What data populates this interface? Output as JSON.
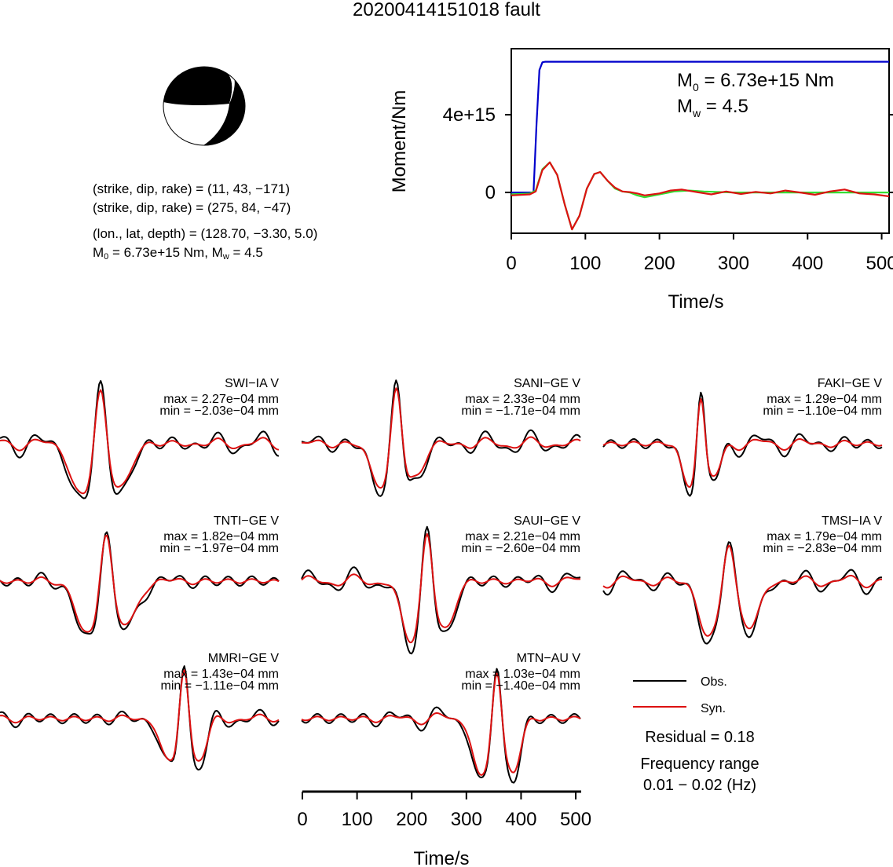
{
  "title": "20200414151018 fault",
  "mechanism": {
    "line1": "(strike, dip, rake) = (11, 43, −171)",
    "line2": "(strike, dip, rake) = (275, 84, −47)",
    "line3": "(lon., lat, depth) = (128.70, −3.30, 5.0)",
    "m0_label": "M",
    "m0_sub": "0",
    "m0_value": " = 6.73e+15 Nm, M",
    "mw_sub": "w",
    "mw_value": " = 4.5"
  },
  "moment_plot": {
    "ylabel": "Moment/Nm",
    "xlabel": "Time/s",
    "m0_text": "M",
    "m0_sub": "0",
    "m0_value": " = 6.73e+15 Nm",
    "mw_text": "M",
    "mw_sub": "w",
    "mw_value": " = 4.5",
    "yticks": [
      "0",
      "4e+15"
    ],
    "xticks": [
      "0",
      "100",
      "200",
      "300",
      "400",
      "500"
    ]
  },
  "chart_data": [
    {
      "type": "line",
      "xlabel": "Time/s",
      "ylabel": "Moment/Nm",
      "xlim": [
        0,
        510
      ],
      "ylim": [
        -2100000000000000.0,
        7400000000000000.0
      ],
      "series": [
        {
          "color": "#0000cc",
          "x": [
            0,
            30,
            34,
            38,
            42,
            46,
            510
          ],
          "y": [
            0,
            0,
            3500000000000000.0,
            6300000000000000.0,
            6700000000000000.0,
            6730000000000000.0,
            6730000000000000.0
          ]
        },
        {
          "color": "#33dd33",
          "x": [
            0,
            25,
            33,
            42,
            52,
            62,
            72,
            82,
            92,
            102,
            112,
            120,
            130,
            140,
            150,
            160,
            170,
            180,
            200,
            220,
            240,
            260,
            300,
            350,
            400,
            450,
            510
          ],
          "y": [
            -100000000000000.0,
            -50000000000000.0,
            100000000000000.0,
            1200000000000000.0,
            1550000000000000.0,
            900000000000000.0,
            -600000000000000.0,
            -1900000000000000.0,
            -1200000000000000.0,
            200000000000000.0,
            950000000000000.0,
            1050000000000000.0,
            600000000000000.0,
            200000000000000.0,
            50000000000000.0,
            0.0,
            -150000000000000.0,
            -250000000000000.0,
            -100000000000000.0,
            50000000000000.0,
            100000000000000.0,
            50000000000000.0,
            0.0,
            0.0,
            0.0,
            0.0,
            0.0
          ]
        },
        {
          "color": "#dd1111",
          "x": [
            0,
            25,
            33,
            42,
            52,
            62,
            72,
            82,
            92,
            102,
            112,
            120,
            130,
            140,
            150,
            160,
            170,
            180,
            200,
            215,
            230,
            250,
            270,
            290,
            310,
            330,
            350,
            370,
            390,
            410,
            430,
            450,
            470,
            490,
            510
          ],
          "y": [
            -150000000000000.0,
            -100000000000000.0,
            50000000000000.0,
            1150000000000000.0,
            1550000000000000.0,
            900000000000000.0,
            -600000000000000.0,
            -1900000000000000.0,
            -1200000000000000.0,
            200000000000000.0,
            950000000000000.0,
            1050000000000000.0,
            600000000000000.0,
            250000000000000.0,
            50000000000000.0,
            20000000000000.0,
            -50000000000000.0,
            -150000000000000.0,
            -50000000000000.0,
            100000000000000.0,
            150000000000000.0,
            20000000000000.0,
            -100000000000000.0,
            50000000000000.0,
            -80000000000000.0,
            30000000000000.0,
            -50000000000000.0,
            100000000000000.0,
            0.0,
            -120000000000000.0,
            50000000000000.0,
            150000000000000.0,
            -50000000000000.0,
            -100000000000000.0,
            -200000000000000.0
          ]
        }
      ]
    },
    {
      "type": "line",
      "xlabel": "Time/s",
      "xlim": [
        0,
        510
      ],
      "panels": [
        {
          "station": "SWI−IA V",
          "max": "max = 2.27e−04 mm",
          "min": "min = −2.03e−04 mm"
        },
        {
          "station": "SANI−GE V",
          "max": "max = 2.33e−04 mm",
          "min": "min = −1.71e−04 mm"
        },
        {
          "station": "FAKI−GE V",
          "max": "max = 1.29e−04 mm",
          "min": "min = −1.10e−04 mm"
        },
        {
          "station": "TNTI−GE V",
          "max": "max = 1.82e−04 mm",
          "min": "min = −1.97e−04 mm"
        },
        {
          "station": "SAUI−GE V",
          "max": "max = 2.21e−04 mm",
          "min": "min = −2.60e−04 mm"
        },
        {
          "station": "TMSI−IA V",
          "max": "max = 1.79e−04 mm",
          "min": "min = −2.83e−04 mm"
        },
        {
          "station": "MMRI−GE V",
          "max": "max = 1.43e−04 mm",
          "min": "min = −1.11e−04 mm"
        },
        {
          "station": "MTN−AU V",
          "max": "max = 1.03e−04 mm",
          "min": "min = −1.40e−04 mm"
        }
      ],
      "xticks": [
        "0",
        "100",
        "200",
        "300",
        "400",
        "500"
      ]
    }
  ],
  "legend": {
    "obs": "Obs.",
    "syn": "Syn.",
    "obs_color": "#000000",
    "syn_color": "#dd1111"
  },
  "residual": "Residual = 0.18",
  "freq_label": "Frequency range",
  "freq_value": "0.01 − 0.02 (Hz)"
}
